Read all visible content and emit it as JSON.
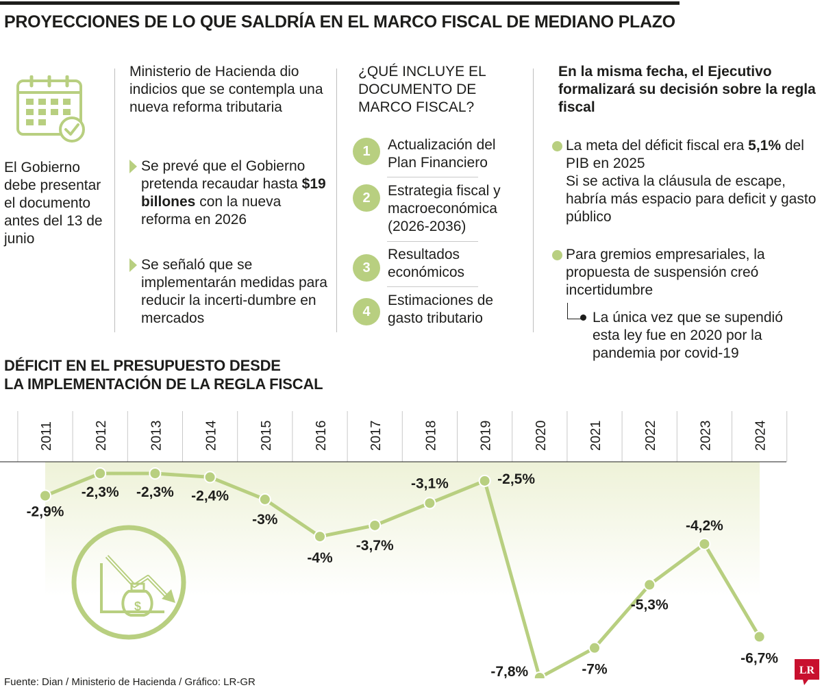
{
  "title": "PROYECCIONES DE LO QUE SALDRÍA EN EL MARCO FISCAL DE MEDIANO PLAZO",
  "col1": {
    "icon": "calendar-check-icon",
    "text": "El Gobierno debe presentar el documento antes del 13 de junio"
  },
  "col2": {
    "heading": "Ministerio de Hacienda dio indicios que se contempla una nueva reforma tributaria",
    "bullet1_pre": "Se prevé que el Gobierno pretenda recaudar hasta ",
    "bullet1_bold": "$19 billones",
    "bullet1_post": " con la nueva reforma en 2026",
    "bullet2": "Se señaló que se implementarán medidas para reducir la incerti-dumbre en mercados"
  },
  "col3": {
    "heading": "¿QUÉ INCLUYE EL DOCUMENTO DE MARCO FISCAL?",
    "items": [
      {
        "num": "1",
        "text": "Actualización del Plan Financiero"
      },
      {
        "num": "2",
        "text": "Estrategia fiscal y macroeconómica (2026-2036)"
      },
      {
        "num": "3",
        "text": "Resultados económicos"
      },
      {
        "num": "4",
        "text": "Estimaciones de gasto tributario"
      }
    ]
  },
  "col4": {
    "heading": "En la misma fecha, el Ejecutivo formalizará su decisión sobre la regla fiscal",
    "item1_pre": "La meta del déficit fiscal era ",
    "item1_bold": "5,1%",
    "item1_post": " del PIB en 2025",
    "item1_line2": "Si se activa la cláusula de escape, habría más espacio para deficit y gasto público",
    "item2": "Para gremios empresariales, la propuesta de suspensión creó incertidumbre",
    "sub_item": "La única vez que se supendió esta ley fue en 2020 por la pandemia por covid-19"
  },
  "chart_title_line1": "DÉFICIT EN EL PRESUPUESTO DESDE",
  "chart_title_line2": "LA IMPLEMENTACIÓN DE LA REGLA FISCAL",
  "chart_data": {
    "type": "line",
    "title": "DÉFICIT EN EL PRESUPUESTO DESDE LA IMPLEMENTACIÓN DE LA REGLA FISCAL",
    "x": [
      "2011",
      "2012",
      "2013",
      "2014",
      "2015",
      "2016",
      "2017",
      "2018",
      "2019",
      "2020",
      "2021",
      "2022",
      "2023",
      "2024"
    ],
    "series": [
      {
        "values": [
          -2.9,
          -2.3,
          -2.3,
          -2.4,
          -3.0,
          -4.0,
          -3.7,
          -3.1,
          -2.5,
          -7.8,
          -7.0,
          -5.3,
          -4.2,
          -6.7
        ]
      }
    ],
    "labels": [
      "-2,9%",
      "-2,3%",
      "-2,3%",
      "-2,4%",
      "-3%",
      "-4%",
      "-3,7%",
      "-3,1%",
      "-2,5%",
      "-7,8%",
      "-7%",
      "-5,3%",
      "-4,2%",
      "-6,7%"
    ],
    "ylim": [
      -7.8,
      -2.3
    ],
    "line_color": "#b8cf80",
    "fill_color": "#eef2d8",
    "grid": false,
    "decor_icon": "money-bag-decline-chart-icon"
  },
  "source": "Fuente: Dian / Ministerio de Hacienda / Gráfico: LR-GR",
  "logo": "LR"
}
